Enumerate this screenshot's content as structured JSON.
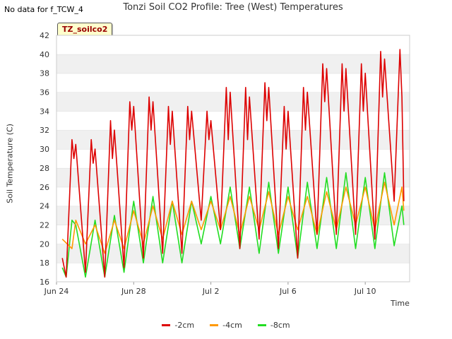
{
  "no_data_note": "No data for f_TCW_4",
  "tag_label": "TZ_soilco2",
  "chart_data": {
    "type": "line",
    "title": "Tonzi Soil CO2 Profile: Tree (West) Temperatures",
    "xlabel": "Time",
    "ylabel": "Soil Temperature (C)",
    "xlim": [
      0,
      18.3
    ],
    "ylim": [
      16,
      42
    ],
    "yticks": [
      16,
      18,
      20,
      22,
      24,
      26,
      28,
      30,
      32,
      34,
      36,
      38,
      40,
      42
    ],
    "xticks": [
      {
        "x": 0,
        "label": "Jun 24"
      },
      {
        "x": 4,
        "label": "Jun 28"
      },
      {
        "x": 8,
        "label": "Jul 2"
      },
      {
        "x": 12,
        "label": "Jul 6"
      },
      {
        "x": 16,
        "label": "Jul 10"
      }
    ],
    "grid": "horizontal bands",
    "legend_position": "bottom",
    "series": [
      {
        "name": "-2cm",
        "color": "#dd0000",
        "x": [
          0.3,
          0.5,
          0.8,
          0.9,
          1.0,
          1.5,
          1.8,
          1.9,
          2.0,
          2.5,
          2.8,
          2.9,
          3.0,
          3.5,
          3.8,
          3.9,
          4.0,
          4.5,
          4.8,
          4.9,
          5.0,
          5.5,
          5.8,
          5.9,
          6.0,
          6.5,
          6.8,
          6.9,
          7.0,
          7.5,
          7.8,
          7.9,
          8.0,
          8.5,
          8.8,
          8.9,
          9.0,
          9.5,
          9.8,
          9.9,
          10.0,
          10.5,
          10.8,
          10.9,
          11.0,
          11.5,
          11.8,
          11.9,
          12.0,
          12.5,
          12.8,
          12.9,
          13.0,
          13.5,
          13.8,
          13.9,
          14.0,
          14.5,
          14.8,
          14.9,
          15.0,
          15.5,
          15.8,
          15.9,
          16.0,
          16.5,
          16.8,
          16.9,
          17.0,
          17.5,
          17.8,
          17.9,
          18.0
        ],
        "values": [
          18.5,
          16.5,
          31.0,
          29.0,
          30.5,
          17.0,
          31.0,
          28.5,
          30.0,
          16.5,
          33.0,
          29.0,
          32.0,
          17.5,
          35.0,
          32.0,
          34.5,
          18.5,
          35.5,
          32.0,
          35.0,
          19.0,
          34.5,
          30.5,
          34.0,
          19.0,
          34.5,
          31.0,
          34.0,
          22.5,
          34.0,
          31.0,
          33.0,
          21.5,
          36.5,
          31.0,
          36.0,
          19.5,
          36.5,
          31.0,
          35.5,
          20.5,
          37.0,
          33.0,
          36.5,
          19.5,
          34.5,
          30.0,
          34.0,
          18.5,
          36.5,
          32.0,
          36.0,
          21.0,
          39.0,
          35.0,
          38.5,
          21.0,
          39.0,
          34.0,
          38.5,
          21.0,
          39.0,
          34.0,
          38.0,
          20.5,
          40.3,
          35.5,
          39.5,
          24.5,
          40.5,
          35.5,
          24.5
        ]
      },
      {
        "name": "-4cm",
        "color": "#ff9900",
        "x": [
          0.3,
          0.8,
          1.0,
          1.5,
          2.0,
          2.5,
          3.0,
          3.5,
          4.0,
          4.5,
          5.0,
          5.5,
          6.0,
          6.5,
          7.0,
          7.5,
          8.0,
          8.5,
          9.0,
          9.5,
          10.0,
          10.5,
          11.0,
          11.5,
          12.0,
          12.5,
          13.0,
          13.5,
          14.0,
          14.5,
          15.0,
          15.5,
          16.0,
          16.5,
          17.0,
          17.5,
          17.9,
          18.0
        ],
        "values": [
          20.5,
          19.5,
          22.5,
          20.0,
          22.0,
          19.0,
          22.5,
          19.5,
          23.5,
          20.0,
          24.0,
          20.5,
          24.5,
          21.0,
          24.5,
          21.5,
          24.5,
          21.5,
          25.0,
          21.0,
          25.0,
          21.5,
          25.5,
          21.0,
          25.0,
          21.5,
          25.0,
          21.0,
          25.5,
          21.5,
          26.0,
          22.0,
          26.0,
          21.5,
          26.5,
          22.0,
          26.0,
          23.5
        ]
      },
      {
        "name": "-8cm",
        "color": "#22dd22",
        "x": [
          0.3,
          0.5,
          0.8,
          1.0,
          1.5,
          2.0,
          2.5,
          3.0,
          3.5,
          4.0,
          4.5,
          5.0,
          5.5,
          6.0,
          6.5,
          7.0,
          7.5,
          8.0,
          8.5,
          9.0,
          9.5,
          10.0,
          10.5,
          11.0,
          11.5,
          12.0,
          12.5,
          13.0,
          13.5,
          14.0,
          14.5,
          15.0,
          15.5,
          16.0,
          16.5,
          17.0,
          17.5,
          17.9,
          18.0
        ],
        "values": [
          17.5,
          16.5,
          22.5,
          22.0,
          16.5,
          22.5,
          16.5,
          23.0,
          17.0,
          24.5,
          18.0,
          25.0,
          18.0,
          24.5,
          18.0,
          24.5,
          20.0,
          25.0,
          20.0,
          26.0,
          19.5,
          26.0,
          19.0,
          26.5,
          19.0,
          26.0,
          18.5,
          26.5,
          19.5,
          27.0,
          19.5,
          27.5,
          19.5,
          27.0,
          19.5,
          27.5,
          19.8,
          24.0,
          22.0
        ]
      }
    ]
  }
}
